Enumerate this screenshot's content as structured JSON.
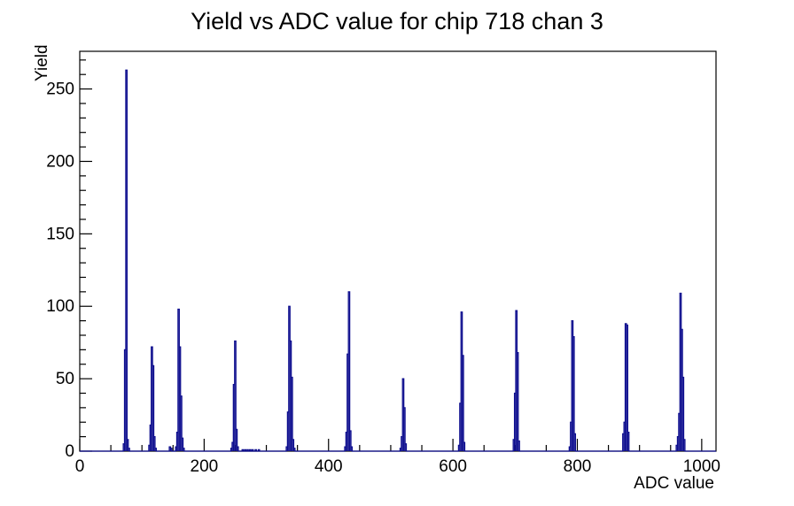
{
  "title": "Yield vs ADC value for chip 718 chan 3",
  "chart_data": {
    "type": "bar",
    "subtype": "histogram-step-outline",
    "title": "Yield vs ADC value for chip 718 chan 3",
    "xlabel": "ADC value",
    "ylabel": "Yield",
    "xlim": [
      0,
      1023
    ],
    "ylim": [
      0,
      276
    ],
    "x_major_ticks": [
      0,
      200,
      400,
      600,
      800,
      1000
    ],
    "x_minor_step": 50,
    "y_major_ticks": [
      0,
      50,
      100,
      150,
      200,
      250
    ],
    "y_minor_step": 10,
    "grid": false,
    "legend": "none",
    "bin_width": 2,
    "line_color": "#0d0d8e",
    "frame_color": "#000000",
    "background_color": "#ffffff",
    "peaks": [
      {
        "center": 75,
        "bins": [
          [
            71,
            5
          ],
          [
            73,
            70
          ],
          [
            75,
            263
          ],
          [
            77,
            8
          ],
          [
            79,
            2
          ]
        ]
      },
      {
        "center": 116,
        "bins": [
          [
            112,
            4
          ],
          [
            114,
            18
          ],
          [
            116,
            72
          ],
          [
            118,
            59
          ],
          [
            120,
            10
          ],
          [
            122,
            2
          ]
        ]
      },
      {
        "center": 159,
        "bins": [
          [
            145,
            3
          ],
          [
            147,
            2
          ],
          [
            155,
            3
          ],
          [
            157,
            13
          ],
          [
            159,
            98
          ],
          [
            161,
            72
          ],
          [
            163,
            38
          ],
          [
            165,
            9
          ],
          [
            167,
            2
          ]
        ]
      },
      {
        "center": 250,
        "bins": [
          [
            244,
            2
          ],
          [
            246,
            6
          ],
          [
            248,
            46
          ],
          [
            250,
            76
          ],
          [
            252,
            15
          ],
          [
            254,
            3
          ],
          [
            262,
            1
          ],
          [
            266,
            1
          ],
          [
            270,
            1
          ],
          [
            274,
            1
          ],
          [
            278,
            1
          ],
          [
            283,
            1
          ],
          [
            288,
            1
          ]
        ]
      },
      {
        "center": 339,
        "bins": [
          [
            333,
            3
          ],
          [
            335,
            27
          ],
          [
            337,
            100
          ],
          [
            339,
            76
          ],
          [
            341,
            51
          ],
          [
            343,
            8
          ],
          [
            345,
            2
          ]
        ]
      },
      {
        "center": 433,
        "bins": [
          [
            427,
            3
          ],
          [
            429,
            13
          ],
          [
            431,
            67
          ],
          [
            433,
            110
          ],
          [
            435,
            14
          ],
          [
            437,
            3
          ]
        ]
      },
      {
        "center": 521,
        "bins": [
          [
            516,
            2
          ],
          [
            518,
            10
          ],
          [
            520,
            50
          ],
          [
            522,
            30
          ],
          [
            524,
            5
          ]
        ]
      },
      {
        "center": 614,
        "bins": [
          [
            610,
            4
          ],
          [
            612,
            33
          ],
          [
            614,
            96
          ],
          [
            616,
            66
          ],
          [
            618,
            6
          ]
        ]
      },
      {
        "center": 702,
        "bins": [
          [
            698,
            8
          ],
          [
            700,
            40
          ],
          [
            702,
            97
          ],
          [
            704,
            68
          ],
          [
            706,
            7
          ]
        ]
      },
      {
        "center": 792,
        "bins": [
          [
            788,
            3
          ],
          [
            790,
            20
          ],
          [
            792,
            90
          ],
          [
            794,
            79
          ],
          [
            796,
            12
          ]
        ]
      },
      {
        "center": 879,
        "bins": [
          [
            874,
            12
          ],
          [
            876,
            20
          ],
          [
            878,
            88
          ],
          [
            880,
            87
          ],
          [
            882,
            13
          ]
        ]
      },
      {
        "center": 966,
        "bins": [
          [
            960,
            4
          ],
          [
            962,
            10
          ],
          [
            964,
            26
          ],
          [
            966,
            109
          ],
          [
            968,
            84
          ],
          [
            970,
            51
          ],
          [
            972,
            8
          ]
        ]
      }
    ]
  }
}
